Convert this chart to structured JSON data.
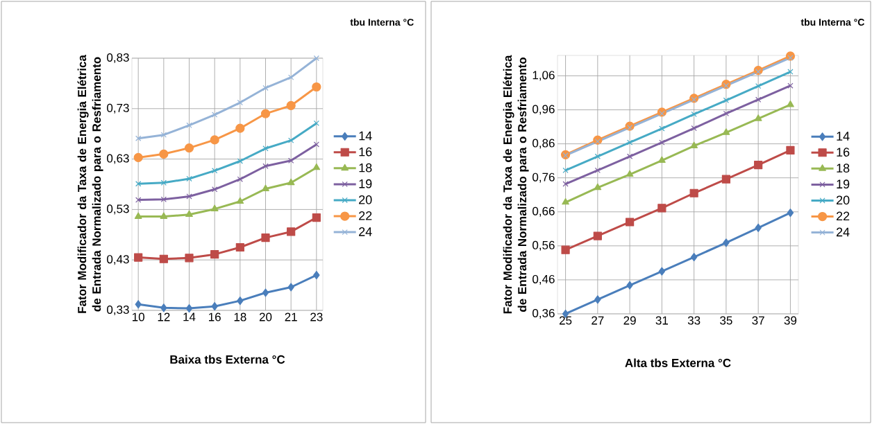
{
  "chart_data": [
    {
      "type": "line",
      "xlabel": "Baixa tbs Externa °C",
      "ylabel": "Fator Modificador da Taxa de Energia Elétrica de Entrada Normalizado para o Resfriamento",
      "legend_title": "tbu Interna °C",
      "categories": [
        "10",
        "12",
        "14",
        "16",
        "18",
        "20",
        "21",
        "23"
      ],
      "ylim": [
        0.33,
        0.83
      ],
      "yticks": [
        {
          "value": 0.33,
          "label": "0,33"
        },
        {
          "value": 0.43,
          "label": "0,43"
        },
        {
          "value": 0.53,
          "label": "0,53"
        },
        {
          "value": 0.63,
          "label": "0,63"
        },
        {
          "value": 0.73,
          "label": "0,73"
        },
        {
          "value": 0.83,
          "label": "0,83"
        }
      ],
      "grid": true,
      "legend": "right",
      "series": [
        {
          "name": "14",
          "color": "#4a7ebb",
          "marker": "diamond",
          "values": [
            0.342,
            0.335,
            0.334,
            0.338,
            0.349,
            0.365,
            0.376,
            0.4
          ]
        },
        {
          "name": "16",
          "color": "#be4b48",
          "marker": "square",
          "values": [
            0.435,
            0.432,
            0.434,
            0.441,
            0.455,
            0.474,
            0.486,
            0.514
          ]
        },
        {
          "name": "18",
          "color": "#98b954",
          "marker": "triangle",
          "values": [
            0.516,
            0.516,
            0.52,
            0.531,
            0.546,
            0.571,
            0.583,
            0.613
          ]
        },
        {
          "name": "19",
          "color": "#7d60a0",
          "marker": "cross",
          "values": [
            0.549,
            0.55,
            0.556,
            0.57,
            0.59,
            0.616,
            0.627,
            0.659
          ]
        },
        {
          "name": "20",
          "color": "#46aac5",
          "marker": "cross",
          "values": [
            0.581,
            0.583,
            0.591,
            0.607,
            0.626,
            0.651,
            0.667,
            0.701
          ]
        },
        {
          "name": "22",
          "color": "#f79646",
          "marker": "circle",
          "values": [
            0.633,
            0.64,
            0.652,
            0.668,
            0.691,
            0.72,
            0.736,
            0.773
          ]
        },
        {
          "name": "24",
          "color": "#95b3d7",
          "marker": "cross",
          "values": [
            0.671,
            0.678,
            0.697,
            0.718,
            0.742,
            0.771,
            0.792,
            0.83
          ]
        }
      ]
    },
    {
      "type": "line",
      "xlabel": "Alta tbs Externa °C",
      "ylabel": "Fator Modificador da Taxa de Energia Elétrica de Entrada Normalizado para o Resfriamento",
      "legend_title": "tbu Interna °C",
      "categories": [
        "25",
        "27",
        "29",
        "31",
        "33",
        "35",
        "37",
        "39"
      ],
      "ylim": [
        0.36,
        1.12
      ],
      "yticks": [
        {
          "value": 0.36,
          "label": "0,36"
        },
        {
          "value": 0.46,
          "label": "0,46"
        },
        {
          "value": 0.56,
          "label": "0,56"
        },
        {
          "value": 0.66,
          "label": "0,66"
        },
        {
          "value": 0.76,
          "label": "0,76"
        },
        {
          "value": 0.86,
          "label": "0,86"
        },
        {
          "value": 0.96,
          "label": "0,96"
        },
        {
          "value": 1.06,
          "label": "1,06"
        }
      ],
      "grid": true,
      "legend": "right",
      "series": [
        {
          "name": "14",
          "color": "#4a7ebb",
          "marker": "diamond",
          "values": [
            0.36,
            0.402,
            0.444,
            0.485,
            0.527,
            0.569,
            0.613,
            0.657
          ]
        },
        {
          "name": "16",
          "color": "#be4b48",
          "marker": "square",
          "values": [
            0.548,
            0.589,
            0.63,
            0.671,
            0.715,
            0.756,
            0.798,
            0.841
          ]
        },
        {
          "name": "18",
          "color": "#98b954",
          "marker": "triangle",
          "values": [
            0.688,
            0.731,
            0.77,
            0.811,
            0.854,
            0.893,
            0.934,
            0.975
          ]
        },
        {
          "name": "19",
          "color": "#7d60a0",
          "marker": "cross",
          "values": [
            0.742,
            0.782,
            0.823,
            0.864,
            0.906,
            0.949,
            0.99,
            1.031
          ]
        },
        {
          "name": "20",
          "color": "#46aac5",
          "marker": "cross",
          "values": [
            0.782,
            0.823,
            0.864,
            0.905,
            0.947,
            0.988,
            1.03,
            1.072
          ]
        },
        {
          "name": "22",
          "color": "#f79646",
          "marker": "circle",
          "values": [
            0.828,
            0.871,
            0.912,
            0.953,
            0.994,
            1.035,
            1.076,
            1.118
          ]
        },
        {
          "name": "24",
          "color": "#95b3d7",
          "marker": "cross",
          "values": [
            0.826,
            0.867,
            0.908,
            0.949,
            0.99,
            1.031,
            1.072,
            1.113
          ]
        }
      ]
    }
  ]
}
